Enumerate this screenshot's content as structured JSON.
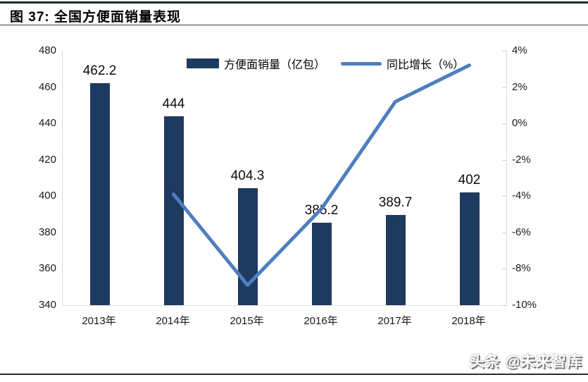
{
  "header": {
    "title": "图 37:  全国方便面销量表现"
  },
  "watermark": {
    "text": "头条 @未来智库"
  },
  "chart_data": {
    "type": "bar",
    "combo": "bar+line",
    "title": "全国方便面销量表现",
    "categories": [
      "2013年",
      "2014年",
      "2015年",
      "2016年",
      "2017年",
      "2018年"
    ],
    "series": [
      {
        "name": "方便面销量（亿包）",
        "type": "bar",
        "axis": "left",
        "color": "#1E3A5F",
        "values": [
          462.2,
          444,
          404.3,
          385.2,
          389.7,
          402
        ],
        "value_labels": [
          "462.2",
          "444",
          "404.3",
          "385.2",
          "389.7",
          "402"
        ]
      },
      {
        "name": "同比增长（%）",
        "type": "line",
        "axis": "right",
        "color": "#4E7EBE",
        "values": [
          null,
          -3.9,
          -8.9,
          -4.7,
          1.2,
          3.2
        ]
      }
    ],
    "left_axis": {
      "min": 340,
      "max": 480,
      "ticks": [
        "480",
        "460",
        "440",
        "420",
        "400",
        "380",
        "360",
        "340"
      ]
    },
    "right_axis": {
      "min": -10,
      "max": 4,
      "ticks": [
        "4%",
        "2%",
        "0%",
        "-2%",
        "-4%",
        "-6%",
        "-8%",
        "-10%"
      ]
    },
    "legend_position": "top-center",
    "grid": false
  }
}
